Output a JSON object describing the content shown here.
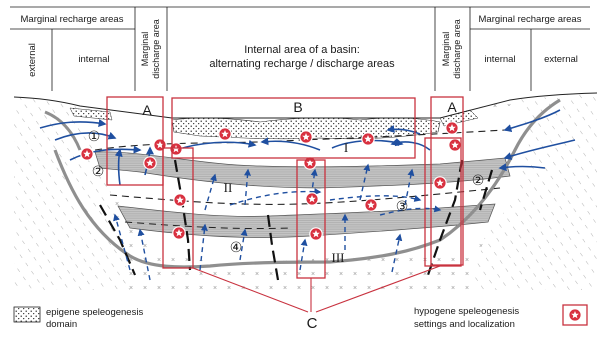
{
  "header": {
    "left_group": "Marginal recharge areas",
    "left_external": "external",
    "left_internal": "internal",
    "left_discharge": [
      "Marginal",
      "discharge area"
    ],
    "center_lines": [
      "Internal area of a basin:",
      "alternating recharge / discharge areas"
    ],
    "right_discharge": [
      "Marginal",
      "discharge area"
    ],
    "right_group": "Marginal recharge areas",
    "right_internal": "internal",
    "right_external": "external"
  },
  "labels": {
    "box_a_left": "A",
    "box_b": "B",
    "box_a_right": "A",
    "box_c": "C",
    "circ_1": "①",
    "circ_2_left": "②",
    "circ_2_right": "②",
    "circ_3": "③",
    "circ_4": "④",
    "roman_1": "I",
    "roman_2": "II",
    "roman_3": "III"
  },
  "legend": {
    "epigene": [
      "epigene speleogenesis",
      "domain"
    ],
    "hypogene": [
      "hypogene speleogenesis",
      "settings and localization"
    ]
  },
  "colors": {
    "frame_red": "#c8323f",
    "flow_blue": "#1f4fa0",
    "aquifer_gray": "#c9c9c9",
    "basement_mark": "#8d8d8d"
  }
}
